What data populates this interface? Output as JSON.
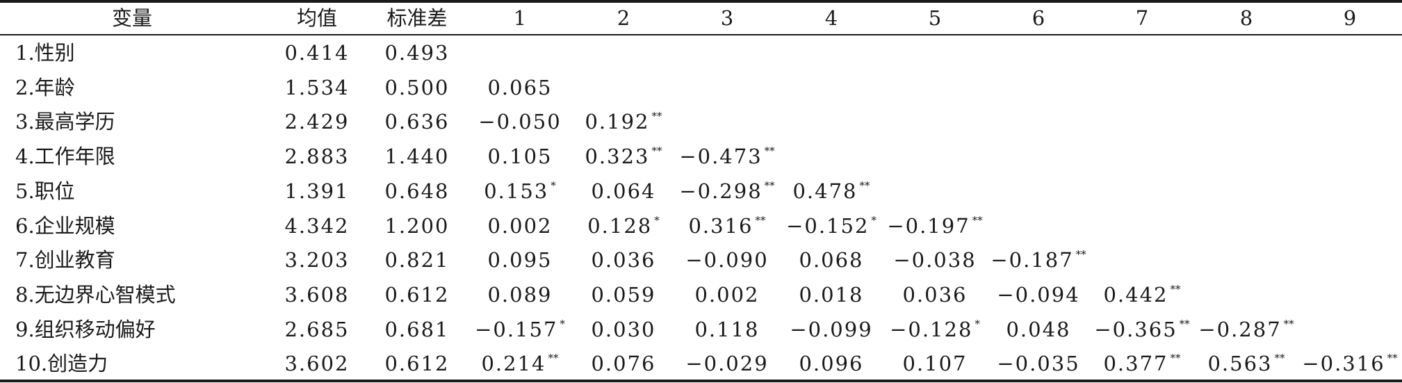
{
  "table": {
    "headers": [
      "变量",
      "均值",
      "标准差",
      "1",
      "2",
      "3",
      "4",
      "5",
      "6",
      "7",
      "8",
      "9"
    ],
    "rows": [
      {
        "label": "1.性别",
        "mean": "0.414",
        "sd": "0.493",
        "cells": []
      },
      {
        "label": "2.年龄",
        "mean": "1.534",
        "sd": "0.500",
        "cells": [
          {
            "v": "0.065",
            "s": ""
          }
        ]
      },
      {
        "label": "3.最高学历",
        "mean": "2.429",
        "sd": "0.636",
        "cells": [
          {
            "v": "−0.050",
            "s": ""
          },
          {
            "v": "0.192",
            "s": "**"
          }
        ]
      },
      {
        "label": "4.工作年限",
        "mean": "2.883",
        "sd": "1.440",
        "cells": [
          {
            "v": "0.105",
            "s": ""
          },
          {
            "v": "0.323",
            "s": "**"
          },
          {
            "v": "−0.473",
            "s": "**"
          }
        ]
      },
      {
        "label": "5.职位",
        "mean": "1.391",
        "sd": "0.648",
        "cells": [
          {
            "v": "0.153",
            "s": "*"
          },
          {
            "v": "0.064",
            "s": ""
          },
          {
            "v": "−0.298",
            "s": "**"
          },
          {
            "v": "0.478",
            "s": "**"
          }
        ]
      },
      {
        "label": "6.企业规模",
        "mean": "4.342",
        "sd": "1.200",
        "cells": [
          {
            "v": "0.002",
            "s": ""
          },
          {
            "v": "0.128",
            "s": "*"
          },
          {
            "v": "0.316",
            "s": "**"
          },
          {
            "v": "−0.152",
            "s": "*"
          },
          {
            "v": "−0.197",
            "s": "**"
          }
        ]
      },
      {
        "label": "7.创业教育",
        "mean": "3.203",
        "sd": "0.821",
        "cells": [
          {
            "v": "0.095",
            "s": ""
          },
          {
            "v": "0.036",
            "s": ""
          },
          {
            "v": "−0.090",
            "s": ""
          },
          {
            "v": "0.068",
            "s": ""
          },
          {
            "v": "−0.038",
            "s": ""
          },
          {
            "v": "−0.187",
            "s": "**"
          }
        ]
      },
      {
        "label": "8.无边界心智模式",
        "mean": "3.608",
        "sd": "0.612",
        "cells": [
          {
            "v": "0.089",
            "s": ""
          },
          {
            "v": "0.059",
            "s": ""
          },
          {
            "v": "0.002",
            "s": ""
          },
          {
            "v": "0.018",
            "s": ""
          },
          {
            "v": "0.036",
            "s": ""
          },
          {
            "v": "−0.094",
            "s": ""
          },
          {
            "v": "0.442",
            "s": "**"
          }
        ]
      },
      {
        "label": "9.组织移动偏好",
        "mean": "2.685",
        "sd": "0.681",
        "cells": [
          {
            "v": "−0.157",
            "s": "*"
          },
          {
            "v": "0.030",
            "s": ""
          },
          {
            "v": "0.118",
            "s": ""
          },
          {
            "v": "−0.099",
            "s": ""
          },
          {
            "v": "−0.128",
            "s": "*"
          },
          {
            "v": "0.048",
            "s": ""
          },
          {
            "v": "−0.365",
            "s": "**"
          },
          {
            "v": "−0.287",
            "s": "**"
          }
        ]
      },
      {
        "label": "10.创造力",
        "mean": "3.602",
        "sd": "0.612",
        "cells": [
          {
            "v": "0.214",
            "s": "**"
          },
          {
            "v": "0.076",
            "s": ""
          },
          {
            "v": "−0.029",
            "s": ""
          },
          {
            "v": "0.096",
            "s": ""
          },
          {
            "v": "0.107",
            "s": ""
          },
          {
            "v": "−0.035",
            "s": ""
          },
          {
            "v": "0.377",
            "s": "**"
          },
          {
            "v": "0.563",
            "s": "**"
          },
          {
            "v": "−0.316",
            "s": "**"
          }
        ]
      }
    ]
  }
}
